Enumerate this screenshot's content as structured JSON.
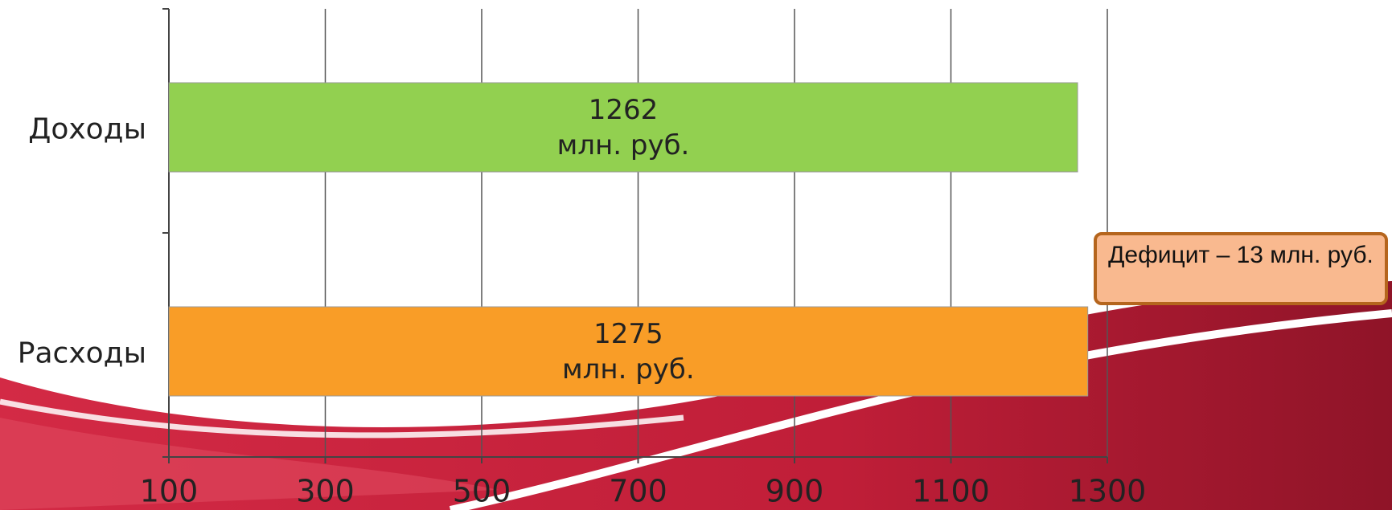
{
  "chart_data": {
    "type": "hbar",
    "categories": [
      "Доходы",
      "Расходы"
    ],
    "values": [
      1262,
      1275
    ],
    "value_labels": [
      "1262\nмлн. руб.",
      "1275\nмлн. руб."
    ],
    "colors": [
      "#92d050",
      "#f99d27"
    ],
    "xlim": [
      100,
      1300
    ],
    "xticks": [
      100,
      300,
      500,
      700,
      900,
      1100,
      1300
    ],
    "grid": true,
    "annotation": "Дефицит – 13 млн. руб."
  }
}
